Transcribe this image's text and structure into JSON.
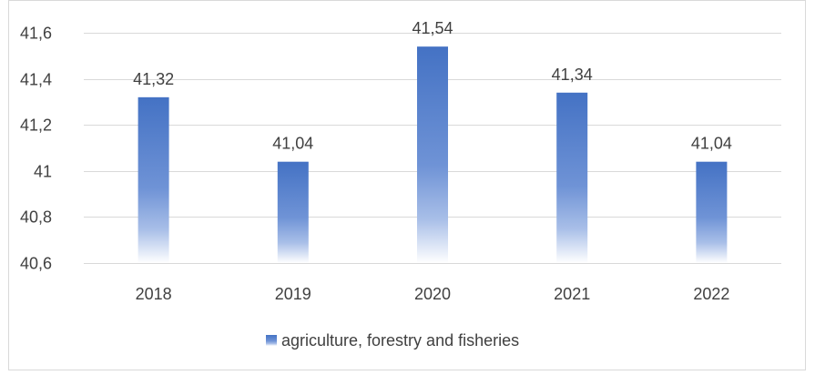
{
  "chart_data": {
    "type": "bar",
    "categories": [
      "2018",
      "2019",
      "2020",
      "2021",
      "2022"
    ],
    "series": [
      {
        "name": "agriculture, forestry and fisheries",
        "values": [
          41.32,
          41.04,
          41.54,
          41.34,
          41.04
        ],
        "value_labels": [
          "41,32",
          "41,04",
          "41,54",
          "41,34",
          "41,04"
        ]
      }
    ],
    "ylim": [
      40.6,
      41.6
    ],
    "yticks": [
      40.6,
      40.8,
      41,
      41.2,
      41.4,
      41.6
    ],
    "ytick_labels": [
      "40,6",
      "40,8",
      "41",
      "41,2",
      "41,4",
      "41,6"
    ],
    "grid": true,
    "legend_position": "bottom",
    "colors": {
      "bar_top": "#4472c4",
      "bar_bottom": "#ffffff",
      "grid": "#d9d9d9",
      "text": "#404040",
      "border": "#d9d9d9"
    }
  }
}
